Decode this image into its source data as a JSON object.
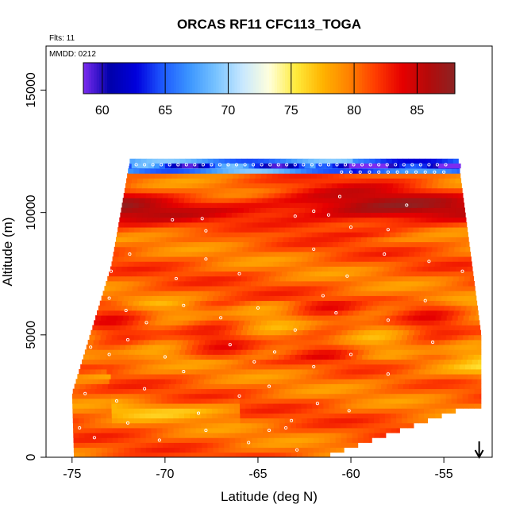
{
  "chart_data": {
    "type": "heatmap",
    "title": "ORCAS RF11 CFC113_TOGA",
    "flights_label": "Flts: 11",
    "date_label": "MMDD: 0212",
    "xlabel": "Latitude (deg N)",
    "ylabel": "Altitude (m)",
    "xlim": [
      -76.4,
      -52.4
    ],
    "ylim": [
      0,
      16800
    ],
    "x_ticks": [
      -75,
      -70,
      -65,
      -60,
      -55
    ],
    "x_tick_labels": [
      "-75",
      "-70",
      "-65",
      "-60",
      "-55"
    ],
    "y_ticks": [
      0,
      5000,
      10000,
      15000
    ],
    "y_tick_labels": [
      "0",
      "5000",
      "10000",
      "15000"
    ],
    "colorbar": {
      "range": [
        58.5,
        88
      ],
      "ticks": [
        60,
        65,
        70,
        75,
        80,
        85
      ],
      "tick_labels": [
        "60",
        "65",
        "70",
        "75",
        "80",
        "85"
      ],
      "colors": [
        "#7b2cf0",
        "#0000aa",
        "#0000dd",
        "#1e5aff",
        "#3c96ff",
        "#78c3ff",
        "#c8e8ff",
        "#ffffdc",
        "#ffeb3c",
        "#ffb400",
        "#ff8200",
        "#ff3c00",
        "#e60000",
        "#b40a0a",
        "#8c2323"
      ]
    },
    "arrow_marker_latitude": -53.1,
    "grid": false,
    "legend": "none"
  }
}
